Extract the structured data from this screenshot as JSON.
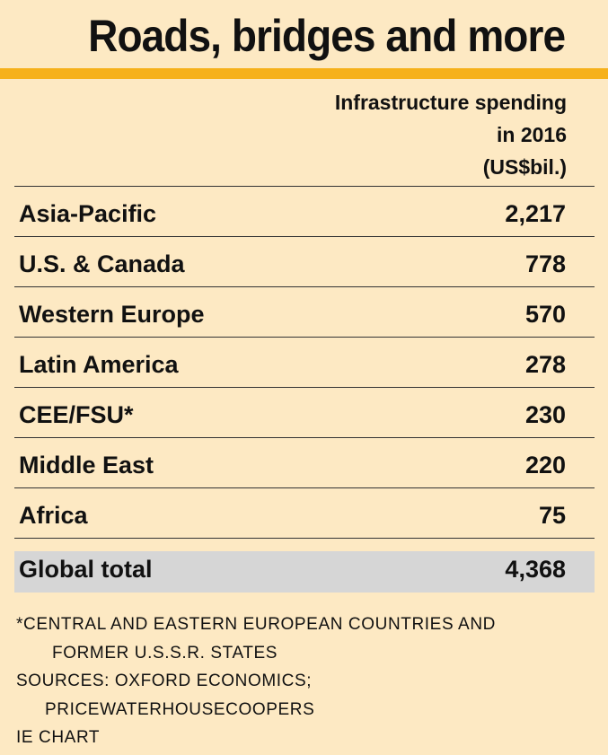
{
  "header": {
    "title": "Roads, bridges and more"
  },
  "column_header": {
    "line1": "Infrastructure spending",
    "line2": "in 2016",
    "line3": "(US$bil.)"
  },
  "chart_data": {
    "type": "table",
    "title": "Roads, bridges and more",
    "value_label": "Infrastructure spending in 2016 (US$bil.)",
    "rows": [
      {
        "region": "Asia-Pacific",
        "value": "2,217"
      },
      {
        "region": "U.S. & Canada",
        "value": "778"
      },
      {
        "region": "Western Europe",
        "value": "570"
      },
      {
        "region": "Latin America",
        "value": "278"
      },
      {
        "region": "CEE/FSU*",
        "value": "230"
      },
      {
        "region": "Middle East",
        "value": "220"
      },
      {
        "region": "Africa",
        "value": "75"
      }
    ],
    "total": {
      "region": "Global total",
      "value": "4,368"
    }
  },
  "notes": {
    "footnote_line1": "*CENTRAL AND EASTERN EUROPEAN COUNTRIES AND",
    "footnote_line2": "FORMER U.S.S.R. STATES",
    "sources_line1": "SOURCES: OXFORD ECONOMICS;",
    "sources_line2": "PRICEWATERHOUSECOOPERS",
    "credit": "IE CHART"
  },
  "colors": {
    "background": "#fde9c3",
    "accent": "#f6b11b",
    "total_row": "#d6d6d6"
  }
}
